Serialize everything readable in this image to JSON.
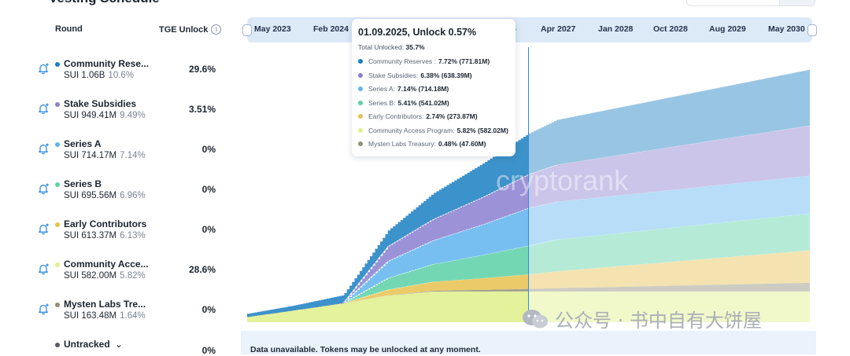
{
  "table": {
    "header_round": "Round",
    "header_tge": "TGE Unlock",
    "rows": [
      {
        "name": "Community Rese...",
        "amount": "SUI 1.06B",
        "pct": "10.6%",
        "tge": "29.6%",
        "color": "#1a7fc1"
      },
      {
        "name": "Stake Subsidies",
        "amount": "SUI 949.41M",
        "pct": "9.49%",
        "tge": "3.51%",
        "color": "#8b7fd0"
      },
      {
        "name": "Series A",
        "amount": "SUI 714.17M",
        "pct": "7.14%",
        "tge": "0%",
        "color": "#5fb4ef"
      },
      {
        "name": "Series B",
        "amount": "SUI 695.56M",
        "pct": "6.96%",
        "tge": "0%",
        "color": "#5cd0a6"
      },
      {
        "name": "Early Contributors",
        "amount": "SUI 613.37M",
        "pct": "6.13%",
        "tge": "0%",
        "color": "#e7c24f"
      },
      {
        "name": "Community Acce...",
        "amount": "SUI 582.00M",
        "pct": "5.82%",
        "tge": "28.6%",
        "color": "#dff08a"
      },
      {
        "name": "Mysten Labs Tre...",
        "amount": "SUI 163.48M",
        "pct": "1.64%",
        "tge": "0%",
        "color": "#8f8f7a"
      }
    ],
    "untracked_label": "Untracked",
    "untracked_tge": "0%"
  },
  "timeline": {
    "labels": [
      "May 2023",
      "Feb 2024",
      "5",
      "Apr 2027",
      "Jan 2028",
      "Oct 2028",
      "Aug 2029",
      "May 2030"
    ]
  },
  "tooltip": {
    "title": "01.09.2025, Unlock 0.57%",
    "total_label": "Total Unlocked:",
    "total_value": "35.7%",
    "items": [
      {
        "label": "Community Reserves :",
        "value": "7.72% (771.81M)",
        "color": "#1a7fc1"
      },
      {
        "label": "Stake Subsidies:",
        "value": "6.38% (638.39M)",
        "color": "#8b7fd0"
      },
      {
        "label": "Series A:",
        "value": "7.14% (714.18M)",
        "color": "#5fb4ef"
      },
      {
        "label": "Series B:",
        "value": "5.41% (541.02M)",
        "color": "#5cd0a6"
      },
      {
        "label": "Early Contributors:",
        "value": "2.74% (273.87M)",
        "color": "#e7c24f"
      },
      {
        "label": "Community Access Program:",
        "value": "5.82% (582.02M)",
        "color": "#dff08a"
      },
      {
        "label": "Mysten Labs Treasury:",
        "value": "0.48% (47.60M)",
        "color": "#8f8f7a"
      }
    ]
  },
  "note": "Data unavailable. Tokens may be unlocked at any moment.",
  "watermark_brand": "cryptorank",
  "watermark_text": "公众号 · 书中自有大饼屋",
  "chart_data": {
    "type": "area",
    "stacked": true,
    "unit": "% of supply",
    "x": [
      0,
      8,
      17,
      25,
      33,
      42,
      50,
      55,
      100
    ],
    "series": [
      {
        "name": "Community Access Program",
        "color": "#dff08a",
        "values": [
          1.0,
          2.2,
          3.6,
          5.0,
          5.8,
          5.82,
          5.82,
          5.82,
          5.82
        ]
      },
      {
        "name": "Mysten Labs Treasury",
        "color": "#8f8f7a",
        "values": [
          0.0,
          0.0,
          0.0,
          0.05,
          0.15,
          0.3,
          0.48,
          0.6,
          1.64
        ]
      },
      {
        "name": "Early Contributors",
        "color": "#e7c24f",
        "values": [
          0.0,
          0.0,
          0.0,
          1.1,
          1.7,
          2.2,
          2.74,
          3.2,
          6.13
        ]
      },
      {
        "name": "Series B",
        "color": "#5cd0a6",
        "values": [
          0.0,
          0.0,
          0.0,
          2.2,
          3.3,
          4.4,
          5.41,
          6.0,
          6.96
        ]
      },
      {
        "name": "Series A",
        "color": "#5fb4ef",
        "values": [
          0.0,
          0.0,
          0.0,
          3.2,
          4.5,
          5.8,
          7.14,
          7.14,
          7.14
        ]
      },
      {
        "name": "Stake Subsidies",
        "color": "#8b7fd0",
        "values": [
          0.0,
          0.0,
          0.0,
          2.8,
          4.0,
          5.2,
          6.38,
          7.0,
          9.49
        ]
      },
      {
        "name": "Community Reserves",
        "color": "#1a7fc1",
        "values": [
          0.6,
          0.9,
          1.5,
          3.0,
          4.9,
          6.4,
          7.72,
          8.5,
          10.6
        ]
      }
    ],
    "cursor_x": 50,
    "split_x": 50,
    "ylim": [
      0,
      52
    ]
  }
}
